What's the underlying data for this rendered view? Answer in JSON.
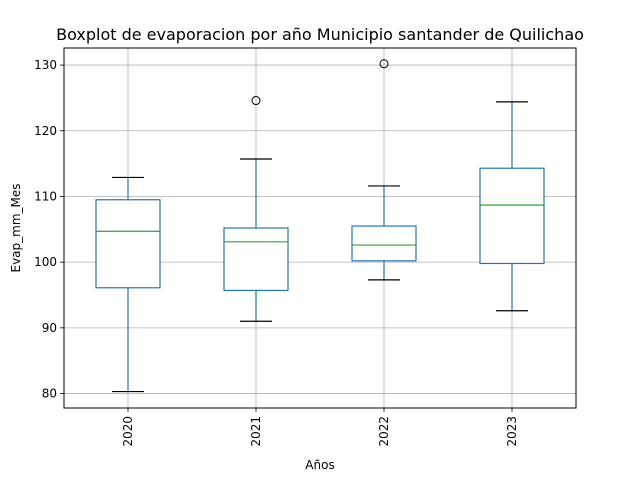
{
  "chart_data": {
    "type": "boxplot",
    "title": "Boxplot de evaporacion por año Municipio santander de Quilichao",
    "xlabel": "Años",
    "ylabel": "Evap_mm_Mes",
    "categories": [
      "2020",
      "2021",
      "2022",
      "2023"
    ],
    "ylim": [
      77.8,
      132.6
    ],
    "yticks": [
      80,
      90,
      100,
      110,
      120,
      130
    ],
    "ytick_labels": [
      "80",
      "90",
      "100",
      "110",
      "120",
      "130"
    ],
    "grid": true,
    "boxes": [
      {
        "category": "2020",
        "whisker_low": 80.3,
        "q1": 96.1,
        "median": 104.7,
        "q3": 109.5,
        "whisker_high": 112.9,
        "outliers": []
      },
      {
        "category": "2021",
        "whisker_low": 91.0,
        "q1": 95.7,
        "median": 103.1,
        "q3": 105.2,
        "whisker_high": 115.7,
        "outliers": [
          124.6
        ]
      },
      {
        "category": "2022",
        "whisker_low": 97.3,
        "q1": 100.2,
        "median": 102.6,
        "q3": 105.5,
        "whisker_high": 111.6,
        "outliers": [
          130.2
        ]
      },
      {
        "category": "2023",
        "whisker_low": 92.6,
        "q1": 99.8,
        "median": 108.7,
        "q3": 114.3,
        "whisker_high": 124.4,
        "outliers": []
      }
    ],
    "colors": {
      "box": "#1f77b4",
      "median": "#2ca02c",
      "cap": "#000000",
      "grid": "#b0b0b0",
      "outlier": "#000000"
    }
  }
}
